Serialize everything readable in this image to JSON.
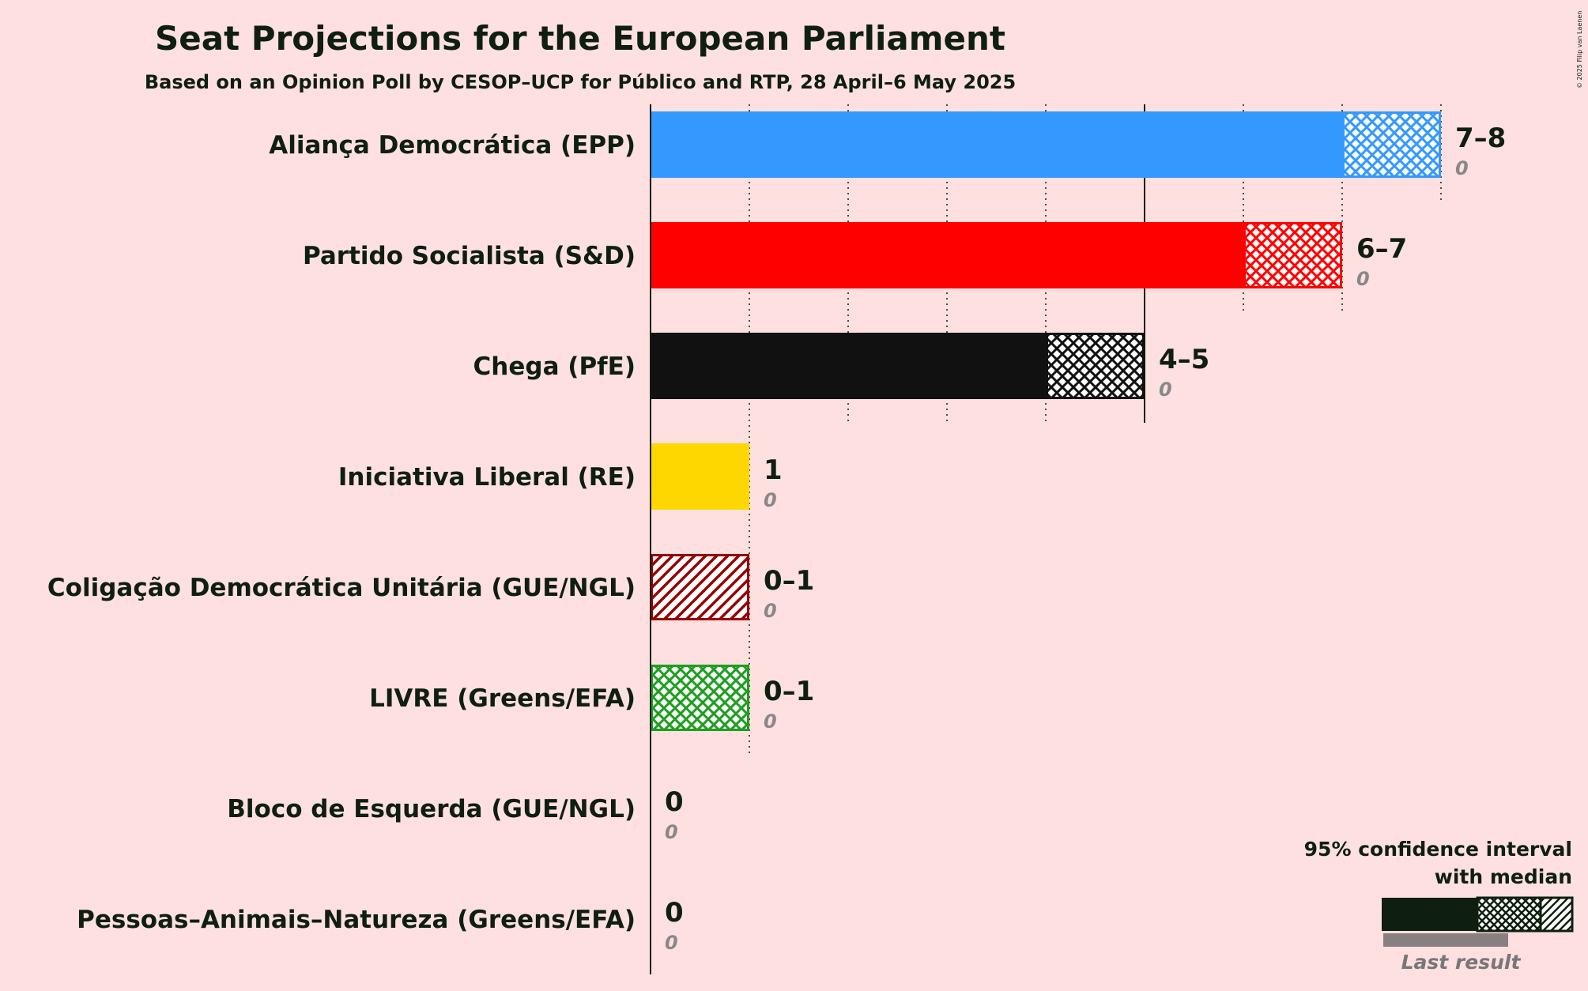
{
  "title": "Seat Projections for the European Parliament",
  "subtitle": "Based on an Opinion Poll by CESOP–UCP for Público and RTP, 28 April–6 May 2025",
  "copyright": "© 2025 Filip van Laenen",
  "legend": {
    "line1": "95% confidence interval",
    "line2": "with median",
    "last_result": "Last result"
  },
  "chart_data": {
    "type": "bar",
    "orientation": "horizontal",
    "xlim": [
      0,
      8
    ],
    "x_unit": "seats",
    "grid": "dotted per seat, solid at 5",
    "categories": [
      "Aliança Democrática (EPP)",
      "Partido Socialista (S&D)",
      "Chega (PfE)",
      "Iniciativa Liberal (RE)",
      "Coligação Democrática Unitária (GUE/NGL)",
      "LIVRE (Greens/EFA)",
      "Bloco de Esquerda (GUE/NGL)",
      "Pessoas–Animais–Natureza (Greens/EFA)"
    ],
    "parties": [
      {
        "name": "Aliança Democrática (EPP)",
        "low": 7,
        "high": 8,
        "median": 8,
        "range_label": "7–8",
        "last_result": 0,
        "last_label": "0",
        "color": "#3399FF"
      },
      {
        "name": "Partido Socialista (S&D)",
        "low": 6,
        "high": 7,
        "median": 7,
        "range_label": "6–7",
        "last_result": 0,
        "last_label": "0",
        "color": "#FF0000"
      },
      {
        "name": "Chega (PfE)",
        "low": 4,
        "high": 5,
        "median": 5,
        "range_label": "4–5",
        "last_result": 0,
        "last_label": "0",
        "color": "#111111"
      },
      {
        "name": "Iniciativa Liberal (RE)",
        "low": 1,
        "high": 1,
        "median": 1,
        "range_label": "1",
        "last_result": 0,
        "last_label": "0",
        "color": "#FFD700"
      },
      {
        "name": "Coligação Democrática Unitária (GUE/NGL)",
        "low": 0,
        "high": 1,
        "median": 0,
        "range_label": "0–1",
        "last_result": 0,
        "last_label": "0",
        "color": "#990000"
      },
      {
        "name": "LIVRE (Greens/EFA)",
        "low": 0,
        "high": 1,
        "median": 1,
        "range_label": "0–1",
        "last_result": 0,
        "last_label": "0",
        "color": "#1E9E1E"
      },
      {
        "name": "Bloco de Esquerda (GUE/NGL)",
        "low": 0,
        "high": 0,
        "median": 0,
        "range_label": "0",
        "last_result": 0,
        "last_label": "0",
        "color": "#990044"
      },
      {
        "name": "Pessoas–Animais–Natureza (Greens/EFA)",
        "low": 0,
        "high": 0,
        "median": 0,
        "range_label": "0",
        "last_result": 0,
        "last_label": "0",
        "color": "#006666"
      }
    ]
  }
}
